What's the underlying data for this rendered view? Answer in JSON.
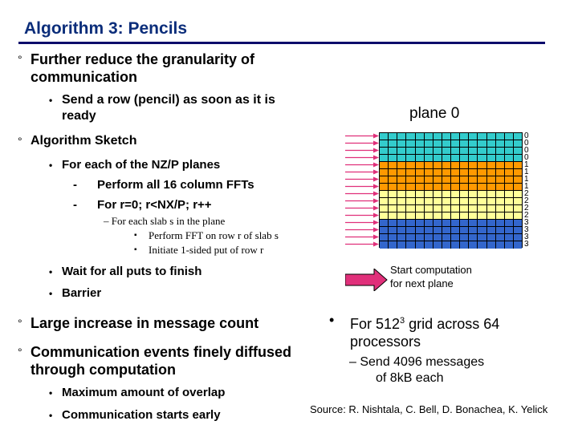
{
  "slide": {
    "title": "Algorithm 3: Pencils",
    "bullets": {
      "b1_line1": "Further reduce the granularity of",
      "b1_line2": "communication",
      "b1_sub_line1": "Send a row (pencil) as soon as it is",
      "b1_sub_line2": "ready",
      "b2": "Algorithm Sketch",
      "b2_sub": "For each of the NZ/P planes",
      "b2_dash1": "Perform all 16 column FFTs",
      "b2_dash2": "For r=0; r<NX/P; r++",
      "b2_en": "– For each slab s in the plane",
      "b2_sq1": "Perform FFT on row r of slab s",
      "b2_sq2": "Initiate 1-sided put of row r",
      "b2_wait": "Wait for all puts to finish",
      "b2_barrier": "Barrier",
      "b3": "Large increase in message count",
      "b4_line1": "Communication events finely diffused",
      "b4_line2": "through computation",
      "b4_sub1": "Maximum amount of overlap",
      "b4_sub2": "Communication starts early"
    },
    "figure": {
      "plane_label": "plane 0",
      "row_labels": [
        "0",
        "0",
        "0",
        "0",
        "1",
        "1",
        "1",
        "1",
        "2",
        "2",
        "2",
        "2",
        "3",
        "3",
        "3",
        "3"
      ],
      "row_colors": [
        "#33cccc",
        "#33cccc",
        "#33cccc",
        "#33cccc",
        "#ff9900",
        "#ff9900",
        "#ff9900",
        "#ff9900",
        "#ffff99",
        "#ffff99",
        "#ffff99",
        "#ffff99",
        "#3366cc",
        "#3366cc",
        "#3366cc",
        "#3366cc"
      ],
      "arrow_color": "#e0307a",
      "start_line1": "Start computation",
      "start_line2": "for next plane"
    },
    "right": {
      "line1_pre": "For 512",
      "line1_sup": "3",
      "line1_post": " grid across 64",
      "line2": "processors",
      "sub_line1": "– Send 4096 messages",
      "sub_line2": "of 8kB each"
    },
    "source": "Source:  R. Nishtala, C. Bell, D. Bonachea, K. Yelick"
  }
}
